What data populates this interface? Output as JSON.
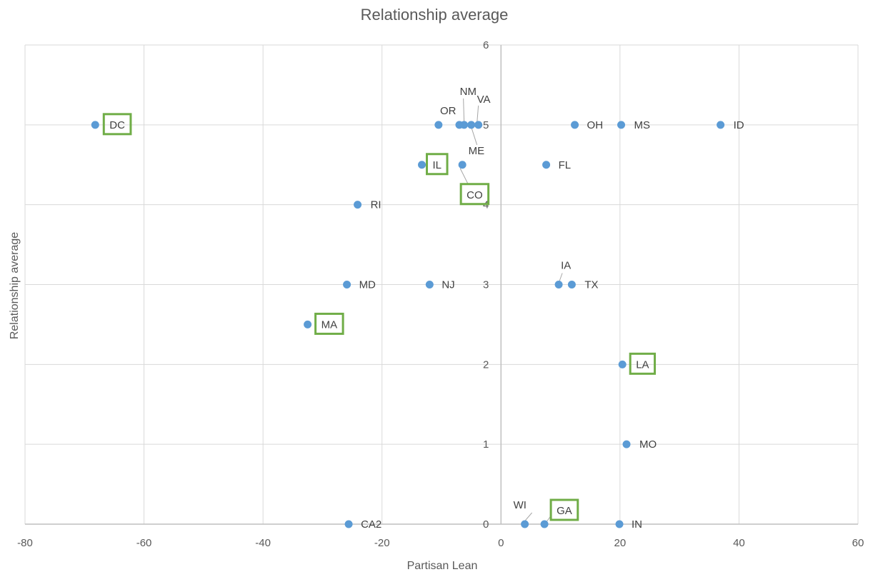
{
  "chart_data": {
    "type": "scatter",
    "title": "Relationship average",
    "xlabel": "Partisan Lean",
    "ylabel": "Relationship average",
    "xlim": [
      -80,
      60
    ],
    "ylim": [
      0,
      6
    ],
    "x_ticks": [
      "-80",
      "-60",
      "-40",
      "-20",
      "0",
      "20",
      "40",
      "60"
    ],
    "y_ticks": [
      "0",
      "1",
      "2",
      "3",
      "4",
      "5",
      "6"
    ],
    "grid": true,
    "marker_color": "#5b9bd5",
    "highlight_color": "#70ad47",
    "points": [
      {
        "label": "DC",
        "x": -68.2,
        "y": 5,
        "highlight": true
      },
      {
        "label": "NM",
        "x": -6.2,
        "y": 5,
        "highlight": false
      },
      {
        "label": "VA",
        "x": -3.8,
        "y": 5,
        "highlight": false
      },
      {
        "label": "OR",
        "x": -7.0,
        "y": 5,
        "highlight": false
      },
      {
        "label": "ME",
        "x": -5.0,
        "y": 5,
        "highlight": false
      },
      {
        "label": "",
        "x": -10.5,
        "y": 5,
        "highlight": false
      },
      {
        "label": "OH",
        "x": 12.4,
        "y": 5,
        "highlight": false
      },
      {
        "label": "MS",
        "x": 20.2,
        "y": 5,
        "highlight": false
      },
      {
        "label": "ID",
        "x": 36.9,
        "y": 5,
        "highlight": false
      },
      {
        "label": "IL",
        "x": -13.3,
        "y": 4.5,
        "highlight": true
      },
      {
        "label": "CO",
        "x": -6.5,
        "y": 4.5,
        "highlight": true
      },
      {
        "label": "FL",
        "x": 7.6,
        "y": 4.5,
        "highlight": false
      },
      {
        "label": "RI",
        "x": -24.1,
        "y": 4,
        "highlight": false
      },
      {
        "label": "MD",
        "x": -25.9,
        "y": 3,
        "highlight": false
      },
      {
        "label": "NJ",
        "x": -12.0,
        "y": 3,
        "highlight": false
      },
      {
        "label": "IA",
        "x": 9.7,
        "y": 3,
        "highlight": false
      },
      {
        "label": "TX",
        "x": 11.9,
        "y": 3,
        "highlight": false
      },
      {
        "label": "MA",
        "x": -32.5,
        "y": 2.5,
        "highlight": true
      },
      {
        "label": "LA",
        "x": 20.4,
        "y": 2,
        "highlight": true
      },
      {
        "label": "MO",
        "x": 21.1,
        "y": 1,
        "highlight": false
      },
      {
        "label": "CA2",
        "x": -25.6,
        "y": 0,
        "highlight": false
      },
      {
        "label": "WI",
        "x": 4.0,
        "y": 0,
        "highlight": false
      },
      {
        "label": "GA",
        "x": 7.3,
        "y": 0,
        "highlight": true
      },
      {
        "label": "IN",
        "x": 19.9,
        "y": 0,
        "highlight": false
      }
    ]
  }
}
